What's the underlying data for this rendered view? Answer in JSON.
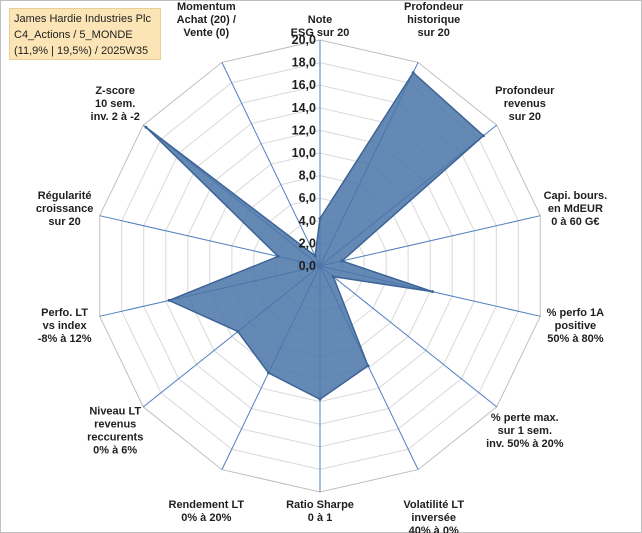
{
  "title": {
    "line1": "James Hardie Industries Plc",
    "line2": "C4_Actions / 5_MONDE",
    "line3": "(11,9% | 19,5%) / 2025W35"
  },
  "colors": {
    "fill": "#4a74a8",
    "stroke": "#3d6496",
    "grid": "#d9d9d9",
    "spoke": "#4f7fc1"
  },
  "chart_data": {
    "type": "radar",
    "rmin": 0,
    "rmax": 20,
    "tick_step": 2,
    "tick_labels": [
      "0,0",
      "2,0",
      "4,0",
      "6,0",
      "8,0",
      "10,0",
      "12,0",
      "14,0",
      "16,0",
      "18,0",
      "20,0"
    ],
    "grid": true,
    "legend": "none",
    "axes": [
      {
        "label": [
          "Note",
          "ESG sur 20"
        ],
        "value": 4.2
      },
      {
        "label": [
          "Profondeur",
          "historique",
          "sur 20"
        ],
        "value": 19.0
      },
      {
        "label": [
          "Profondeur",
          "revenus",
          "sur 20"
        ],
        "value": 18.5
      },
      {
        "label": [
          "Capi. bours.",
          "en MdEUR",
          "0 à 60 G€"
        ],
        "value": 2.0
      },
      {
        "label": [
          "% perfo 1A",
          "positive",
          "50% à 80%"
        ],
        "value": 10.2
      },
      {
        "label": [
          "% perte max.",
          "sur 1 sem.",
          "inv. 50% à 20%"
        ],
        "value": 1.5
      },
      {
        "label": [
          "Volatilité LT",
          "inversée",
          "40% à 0%"
        ],
        "value": 9.8
      },
      {
        "label": [
          "Ratio Sharpe",
          "0 à 1"
        ],
        "value": 11.8
      },
      {
        "label": [
          "Rendement LT",
          "0% à 20%"
        ],
        "value": 10.5
      },
      {
        "label": [
          "Niveau LT",
          "revenus",
          "reccurents",
          "0% à 6%"
        ],
        "value": 9.3
      },
      {
        "label": [
          "Perfo. LT",
          "vs index",
          "-8% à 12%"
        ],
        "value": 13.7
      },
      {
        "label": [
          "Régularité",
          "croissance",
          "sur 20"
        ],
        "value": 3.8
      },
      {
        "label": [
          "Z-score",
          "10 sem.",
          "inv. 2 à -2"
        ],
        "value": 19.7
      },
      {
        "label": [
          "Momentum",
          "Achat (20) /",
          "Vente (0)"
        ],
        "value": 1.0
      }
    ]
  }
}
